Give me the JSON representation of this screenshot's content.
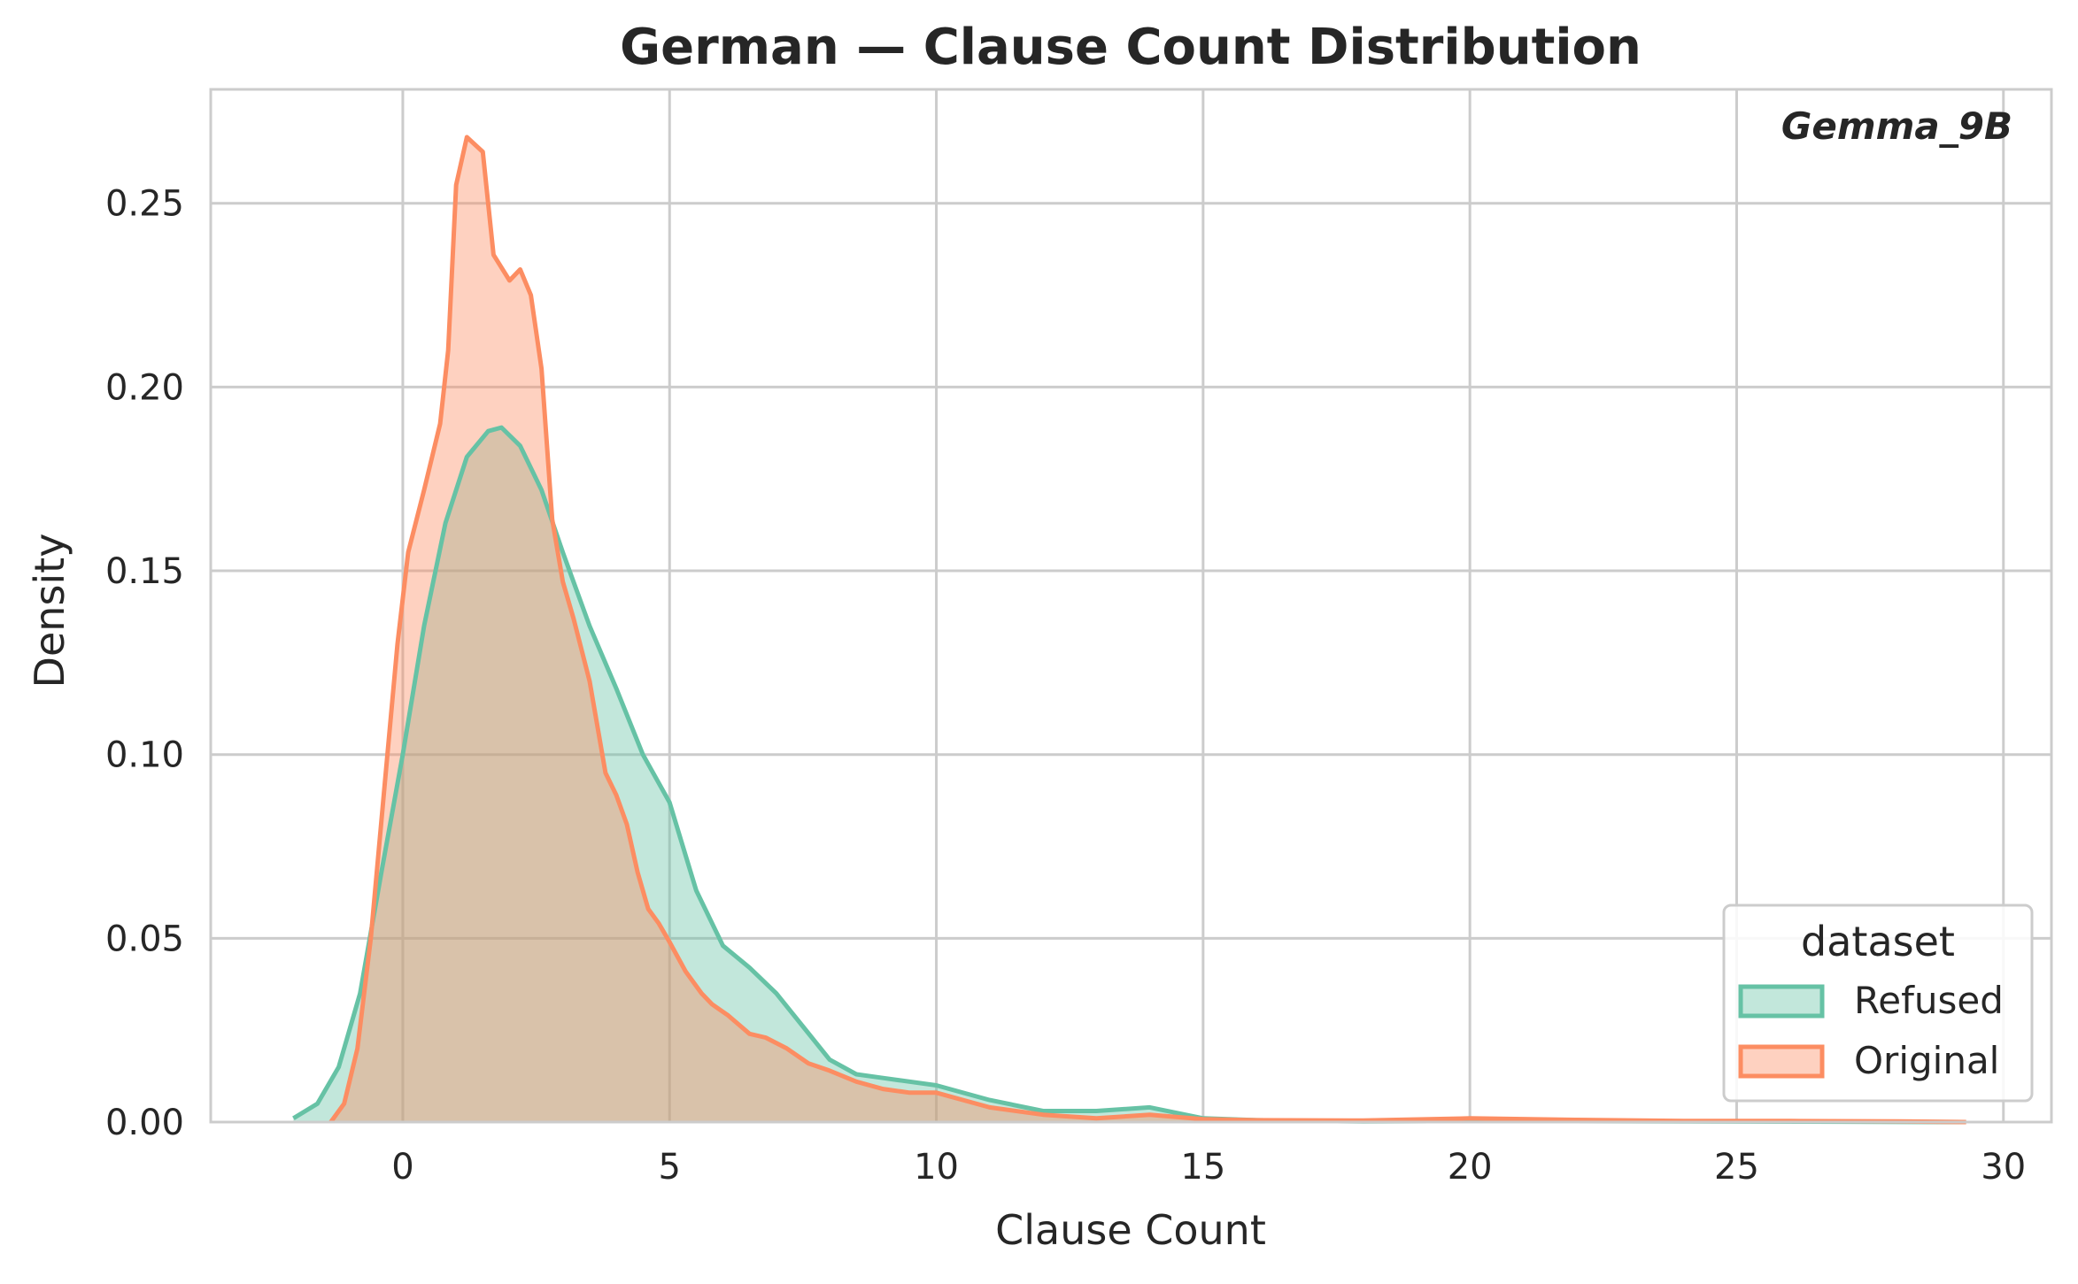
{
  "chart_data": {
    "type": "area",
    "title": "German — Clause Count Distribution",
    "xlabel": "Clause Count",
    "ylabel": "Density",
    "xlim": [
      -3.6,
      30.9
    ],
    "ylim": [
      0,
      0.281
    ],
    "xticks": [
      0,
      5,
      10,
      15,
      20,
      25,
      30
    ],
    "yticks": [
      0.0,
      0.05,
      0.1,
      0.15,
      0.2,
      0.25
    ],
    "ytick_labels": [
      "0.00",
      "0.05",
      "0.10",
      "0.15",
      "0.20",
      "0.25"
    ],
    "grid": true,
    "annotation": "Gemma_9B",
    "legend": {
      "title": "dataset",
      "position": "lower-right",
      "entries": [
        "Refused",
        "Original"
      ]
    },
    "series": [
      {
        "name": "Refused",
        "color": "#66c2a5",
        "x": [
          -2.05,
          -1.6,
          -1.2,
          -0.8,
          -0.4,
          0.0,
          0.4,
          0.8,
          1.2,
          1.6,
          1.85,
          2.2,
          2.6,
          3.0,
          3.5,
          4.0,
          4.5,
          5.0,
          5.5,
          6.0,
          6.5,
          7.0,
          7.5,
          8.0,
          8.5,
          9.0,
          10.0,
          11.0,
          12.0,
          13.0,
          14.0,
          15.0,
          16.0,
          17.0,
          18.0,
          20.0,
          24.0,
          27.0,
          29.3
        ],
        "y": [
          0.001,
          0.005,
          0.015,
          0.035,
          0.068,
          0.1,
          0.135,
          0.163,
          0.181,
          0.188,
          0.189,
          0.184,
          0.172,
          0.155,
          0.135,
          0.118,
          0.1,
          0.087,
          0.063,
          0.048,
          0.042,
          0.035,
          0.026,
          0.017,
          0.013,
          0.012,
          0.01,
          0.006,
          0.003,
          0.003,
          0.004,
          0.001,
          0.0005,
          0.0003,
          0.0002,
          0.0003,
          0.0002,
          0.0001,
          0.0
        ]
      },
      {
        "name": "Original",
        "color": "#fc8d62",
        "x": [
          -1.35,
          -1.1,
          -0.85,
          -0.6,
          -0.35,
          -0.1,
          0.1,
          0.4,
          0.7,
          0.85,
          1.0,
          1.2,
          1.5,
          1.7,
          2.0,
          2.2,
          2.4,
          2.6,
          2.8,
          3.0,
          3.2,
          3.5,
          3.8,
          4.0,
          4.2,
          4.4,
          4.6,
          4.8,
          5.0,
          5.3,
          5.6,
          5.8,
          6.1,
          6.5,
          6.8,
          7.2,
          7.6,
          8.0,
          8.5,
          9.0,
          9.5,
          10.0,
          10.5,
          11.0,
          12.0,
          13.0,
          14.0,
          15.0,
          16.0,
          18.0,
          20.0,
          22.0,
          24.0,
          26.0,
          28.0,
          29.3
        ],
        "y": [
          0.0,
          0.005,
          0.02,
          0.05,
          0.09,
          0.13,
          0.155,
          0.172,
          0.19,
          0.21,
          0.255,
          0.268,
          0.264,
          0.236,
          0.229,
          0.232,
          0.225,
          0.205,
          0.164,
          0.147,
          0.137,
          0.12,
          0.095,
          0.089,
          0.081,
          0.068,
          0.058,
          0.054,
          0.049,
          0.041,
          0.035,
          0.032,
          0.029,
          0.024,
          0.023,
          0.02,
          0.016,
          0.014,
          0.011,
          0.009,
          0.008,
          0.008,
          0.006,
          0.004,
          0.002,
          0.001,
          0.002,
          0.0008,
          0.0005,
          0.0004,
          0.001,
          0.0006,
          0.0003,
          0.0003,
          0.0002,
          0.0
        ]
      }
    ]
  }
}
